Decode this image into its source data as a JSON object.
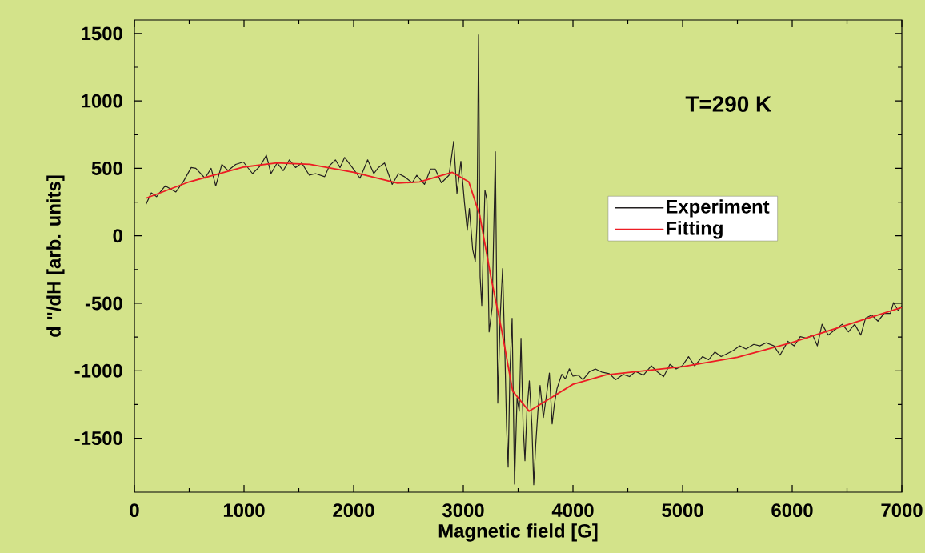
{
  "chart_data": {
    "type": "line",
    "xlabel": "Magnetic field [G]",
    "ylabel": "d \"/dH [arb. units]",
    "annotations": [
      "T=290 K"
    ],
    "xlim": [
      0,
      7000
    ],
    "ylim": [
      -1900,
      1600
    ],
    "xticks": [
      0,
      1000,
      2000,
      3000,
      4000,
      5000,
      6000,
      7000
    ],
    "yticks": [
      -1500,
      -1000,
      -500,
      0,
      500,
      1000,
      1500
    ],
    "legend": "right",
    "series": [
      {
        "name": "Experiment",
        "color": "#231f20",
        "x": [
          106,
          154,
          202,
          280,
          378,
          448,
          518,
          560,
          644,
          700,
          742,
          798,
          854,
          924,
          994,
          1078,
          1148,
          1204,
          1246,
          1302,
          1358,
          1414,
          1470,
          1526,
          1596,
          1652,
          1736,
          1778,
          1834,
          1876,
          1918,
          1988,
          2058,
          2128,
          2184,
          2226,
          2282,
          2352,
          2408,
          2464,
          2534,
          2576,
          2646,
          2702,
          2744,
          2800,
          2870,
          2912,
          2942,
          2978,
          3010,
          3036,
          3055,
          3085,
          3109,
          3125,
          3139,
          3153,
          3168,
          3197,
          3215,
          3235,
          3263,
          3292,
          3314,
          3336,
          3358,
          3380,
          3394,
          3409,
          3425,
          3445,
          3467,
          3490,
          3510,
          3526,
          3545,
          3562,
          3580,
          3602,
          3625,
          3642,
          3660,
          3680,
          3700,
          3730,
          3755,
          3785,
          3810,
          3830,
          3854,
          3875,
          3898,
          3930,
          3967,
          4000,
          4048,
          4091,
          4147,
          4204,
          4261,
          4331,
          4388,
          4459,
          4516,
          4572,
          4643,
          4714,
          4771,
          4827,
          4884,
          4941,
          4997,
          5054,
          5110,
          5181,
          5238,
          5294,
          5351,
          5408,
          5464,
          5521,
          5578,
          5649,
          5705,
          5762,
          5833,
          5889,
          5960,
          6017,
          6073,
          6130,
          6187,
          6229,
          6272,
          6329,
          6399,
          6456,
          6513,
          6570,
          6626,
          6669,
          6725,
          6782,
          6839,
          6895,
          6924,
          6966,
          7000
        ],
        "values": [
          234,
          318,
          290,
          370,
          325,
          404,
          506,
          500,
          427,
          500,
          370,
          529,
          483,
          529,
          547,
          461,
          518,
          597,
          461,
          540,
          483,
          563,
          506,
          540,
          449,
          461,
          438,
          518,
          563,
          506,
          581,
          506,
          427,
          563,
          461,
          506,
          540,
          381,
          461,
          438,
          393,
          449,
          381,
          495,
          495,
          393,
          449,
          700,
          314,
          552,
          250,
          41,
          202,
          -100,
          -190,
          100,
          1489,
          -302,
          -516,
          338,
          267,
          -712,
          -528,
          623,
          -1240,
          -600,
          -243,
          -900,
          -1406,
          -1714,
          -1000,
          -611,
          -1840,
          -1200,
          -1300,
          -759,
          -1400,
          -1667,
          -1300,
          -1074,
          -1400,
          -1845,
          -1550,
          -1300,
          -1109,
          -1347,
          -1200,
          -1017,
          -1394,
          -1250,
          -1133,
          -1080,
          -1026,
          -1060,
          -985,
          -1040,
          -1032,
          -1066,
          -1009,
          -986,
          -1009,
          -1021,
          -1066,
          -1027,
          -1043,
          -1005,
          -1032,
          -963,
          -1009,
          -1043,
          -952,
          -986,
          -963,
          -895,
          -963,
          -895,
          -918,
          -861,
          -895,
          -872,
          -849,
          -815,
          -838,
          -804,
          -815,
          -792,
          -815,
          -884,
          -781,
          -815,
          -747,
          -758,
          -735,
          -815,
          -655,
          -735,
          -690,
          -655,
          -712,
          -655,
          -735,
          -610,
          -587,
          -632,
          -575,
          -575,
          -495,
          -552,
          -518
        ]
      },
      {
        "name": "Fitting",
        "color": "#ed1c24",
        "x": [
          110,
          500,
          1000,
          1300,
          1600,
          2000,
          2400,
          2600,
          2900,
          3050,
          3150,
          3250,
          3350,
          3450,
          3600,
          3800,
          4000,
          4300,
          5000,
          5500,
          6000,
          6500,
          7000
        ],
        "values": [
          280,
          400,
          510,
          540,
          530,
          470,
          390,
          400,
          470,
          400,
          150,
          -300,
          -700,
          -1150,
          -1300,
          -1200,
          -1100,
          -1030,
          -970,
          -900,
          -790,
          -660,
          -530
        ]
      }
    ]
  }
}
